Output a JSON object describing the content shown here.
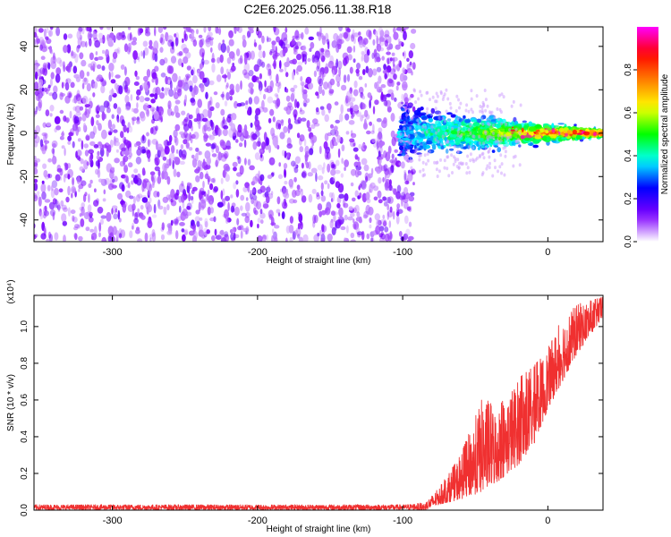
{
  "title": "C2E6.2025.056.11.38.R18",
  "chart_data": [
    {
      "type": "heatmap",
      "xlabel": "Height of straight line (km)",
      "ylabel": "Frequency (Hz)",
      "xlim": [
        -354,
        38
      ],
      "ylim": [
        -50,
        49
      ],
      "xticks": [
        "-300",
        "-200",
        "-100",
        "0"
      ],
      "xtick_values": [
        -300,
        -200,
        -100,
        0
      ],
      "yticks": [
        "-40",
        "-20",
        "0",
        "20",
        "40"
      ],
      "ytick_values": [
        -40,
        -20,
        0,
        20,
        40
      ],
      "noise_region_x": [
        -354,
        -92
      ],
      "signal_onset_x": -102,
      "signal_center_frequency_hz": 0,
      "colorbar": {
        "label": "Normalized spectral amplitude",
        "range": [
          0,
          1
        ],
        "ticks": [
          "0.0",
          "0.2",
          "0.4",
          "0.6",
          "0.8"
        ],
        "tick_values": [
          0.0,
          0.2,
          0.4,
          0.6,
          0.8
        ],
        "colors": [
          "#ffffff",
          "#8000ff",
          "#0000ff",
          "#00ffff",
          "#00ff00",
          "#ffff00",
          "#ff8000",
          "#ff0000",
          "#ff00ff"
        ]
      }
    },
    {
      "type": "line",
      "xlabel": "Height of straight line (km)",
      "ylabel": "SNR (10 * v/v)",
      "scale_label": "(x10⁴)",
      "xlim": [
        -354,
        38
      ],
      "ylim": [
        0,
        1.17
      ],
      "xticks": [
        "-300",
        "-200",
        "-100",
        "0"
      ],
      "xtick_values": [
        -300,
        -200,
        -100,
        0
      ],
      "yticks": [
        "0.0",
        "0.2",
        "0.4",
        "0.6",
        "0.8",
        "1.0"
      ],
      "ytick_values": [
        0.0,
        0.2,
        0.4,
        0.6,
        0.8,
        1.0
      ],
      "line_color": "#f03030",
      "envelope": {
        "x": [
          -354,
          -100,
          -85,
          -75,
          -60,
          -45,
          -35,
          -20,
          -10,
          0,
          10,
          20,
          38
        ],
        "y_low": [
          0.0,
          0.0,
          0.0,
          0.03,
          0.06,
          0.1,
          0.15,
          0.25,
          0.35,
          0.55,
          0.7,
          0.85,
          1.05
        ],
        "y_high": [
          0.03,
          0.03,
          0.04,
          0.12,
          0.3,
          0.62,
          0.55,
          0.72,
          0.78,
          0.88,
          1.05,
          1.12,
          1.16
        ]
      }
    }
  ]
}
